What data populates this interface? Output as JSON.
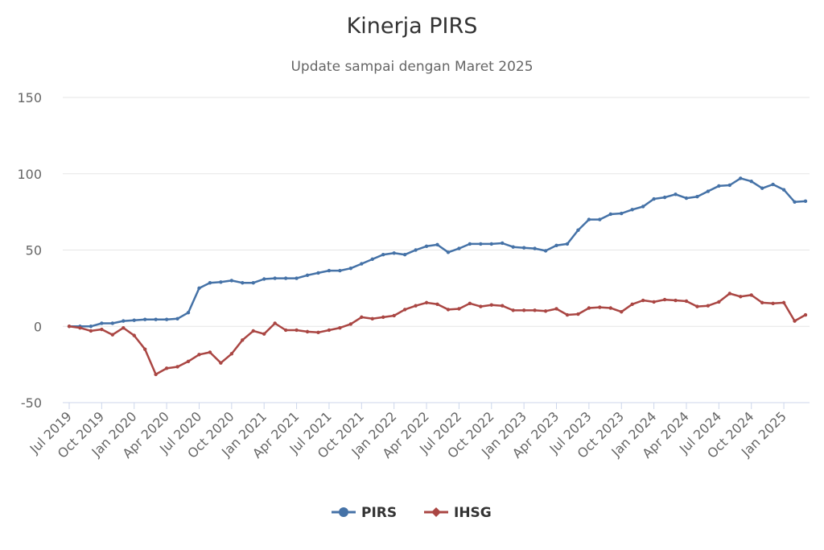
{
  "chart_data": {
    "type": "line",
    "title": "Kinerja PIRS",
    "subtitle": "Update sampai dengan Maret 2025",
    "ylim": [
      -50,
      150
    ],
    "yticks": [
      -50,
      0,
      50,
      100,
      150
    ],
    "grid": true,
    "legend_position": "bottom-center",
    "x": [
      "Jul 2019",
      "Aug 2019",
      "Sep 2019",
      "Oct 2019",
      "Nov 2019",
      "Dec 2019",
      "Jan 2020",
      "Feb 2020",
      "Mar 2020",
      "Apr 2020",
      "May 2020",
      "Jun 2020",
      "Jul 2020",
      "Aug 2020",
      "Sep 2020",
      "Oct 2020",
      "Nov 2020",
      "Dec 2020",
      "Jan 2021",
      "Feb 2021",
      "Mar 2021",
      "Apr 2021",
      "May 2021",
      "Jun 2021",
      "Jul 2021",
      "Aug 2021",
      "Sep 2021",
      "Oct 2021",
      "Nov 2021",
      "Dec 2021",
      "Jan 2022",
      "Feb 2022",
      "Mar 2022",
      "Apr 2022",
      "May 2022",
      "Jun 2022",
      "Jul 2022",
      "Aug 2022",
      "Sep 2022",
      "Oct 2022",
      "Nov 2022",
      "Dec 2022",
      "Jan 2023",
      "Feb 2023",
      "Mar 2023",
      "Apr 2023",
      "May 2023",
      "Jun 2023",
      "Jul 2023",
      "Aug 2023",
      "Sep 2023",
      "Oct 2023",
      "Nov 2023",
      "Dec 2023",
      "Jan 2024",
      "Feb 2024",
      "Mar 2024",
      "Apr 2024",
      "May 2024",
      "Jun 2024",
      "Jul 2024",
      "Aug 2024",
      "Sep 2024",
      "Oct 2024",
      "Nov 2024",
      "Dec 2024",
      "Jan 2025",
      "Feb 2025",
      "Mar 2025"
    ],
    "xtick_labels": [
      "Jul 2019",
      "Oct 2019",
      "Jan 2020",
      "Apr 2020",
      "Jul 2020",
      "Oct 2020",
      "Jan 2021",
      "Apr 2021",
      "Jul 2021",
      "Oct 2021",
      "Jan 2022",
      "Apr 2022",
      "Jul 2022",
      "Oct 2022",
      "Jan 2023",
      "Apr 2023",
      "Jul 2023",
      "Oct 2023",
      "Jan 2024",
      "Apr 2024",
      "Jul 2024",
      "Oct 2024",
      "Jan 2025"
    ],
    "series": [
      {
        "name": "PIRS",
        "color": "#4572a7",
        "marker": "circle",
        "values": [
          0,
          0,
          0,
          2,
          2,
          3.5,
          4,
          4.5,
          4.5,
          4.5,
          5,
          9,
          25,
          28.5,
          29,
          30,
          28.5,
          28.5,
          31,
          31.5,
          31.5,
          31.5,
          33.5,
          35,
          36.5,
          36.5,
          38,
          41,
          44,
          47,
          48,
          47,
          50,
          52.5,
          53.5,
          48.5,
          51,
          54,
          54,
          54,
          54.5,
          52,
          51.5,
          51,
          49.5,
          53,
          54,
          63,
          70,
          70,
          73.5,
          74,
          76.5,
          78.5,
          83.5,
          84.5,
          86.5,
          84,
          85,
          88.5,
          92,
          92.5,
          97,
          95,
          90.5,
          93,
          89.5,
          81.5,
          82
        ]
      },
      {
        "name": "IHSG",
        "color": "#aa4643",
        "marker": "diamond",
        "values": [
          0,
          -1,
          -3,
          -2,
          -5.5,
          -1,
          -6,
          -15,
          -31.5,
          -27.5,
          -26.5,
          -23,
          -18.5,
          -17,
          -24,
          -18,
          -9,
          -3,
          -5,
          2,
          -2.5,
          -2.5,
          -3.5,
          -4,
          -2.5,
          -1,
          1.5,
          6,
          5,
          6,
          7,
          11,
          13.5,
          15.5,
          14.5,
          11,
          11.5,
          15,
          13,
          14,
          13.5,
          10.5,
          10.5,
          10.5,
          10,
          11.5,
          7.5,
          8,
          12,
          12.5,
          12,
          9.5,
          14.5,
          17,
          16,
          17.5,
          17,
          16.5,
          13,
          13.5,
          16,
          21.5,
          19.5,
          20.5,
          15.5,
          15,
          15.5,
          3.5,
          7.5
        ]
      }
    ]
  }
}
